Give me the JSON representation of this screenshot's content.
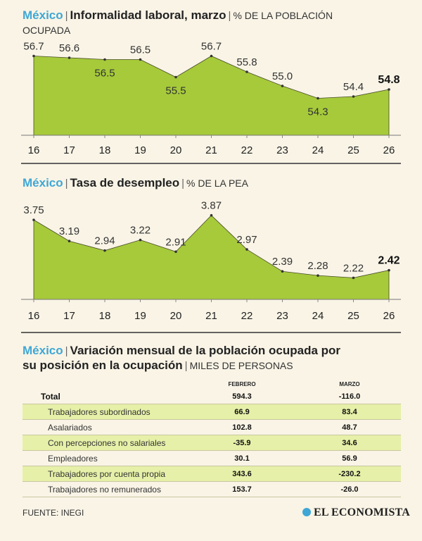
{
  "chart1": {
    "country": "México",
    "title": "Informalidad laboral, marzo",
    "unit_line1": "% DE LA POBLACIÓN",
    "unit_line2": "OCUPADA"
  },
  "chart2": {
    "country": "México",
    "title": "Tasa de desempleo",
    "unit": "% DE LA PEA"
  },
  "table": {
    "country": "México",
    "title_line1": "Variación mensual de la población ocupada por",
    "title_line2": "su posición en la ocupación",
    "unit": "MILES DE PERSONAS",
    "col_feb": "FEBRERO",
    "col_mar": "MARZO",
    "rows": [
      {
        "label": "Total",
        "feb": "594.3",
        "mar": "-116.0"
      },
      {
        "label": "Trabajadores subordinados",
        "feb": "66.9",
        "mar": "83.4"
      },
      {
        "label": "Asalariados",
        "feb": "102.8",
        "mar": "48.7"
      },
      {
        "label": "Con percepciones no salariales",
        "feb": "-35.9",
        "mar": "34.6"
      },
      {
        "label": "Empleadores",
        "feb": "30.1",
        "mar": "56.9"
      },
      {
        "label": "Trabajadores por cuenta propia",
        "feb": "343.6",
        "mar": "-230.2"
      },
      {
        "label": "Trabajadores no remunerados",
        "feb": "153.7",
        "mar": "-26.0"
      }
    ]
  },
  "footer": {
    "source": "FUENTE: INEGI",
    "logo_text": "EL ECONOMISTA"
  },
  "colors": {
    "area_fill": "#a6ca3a",
    "accent_blue": "#3fa7d6",
    "highlight_row": "#e6f0a8",
    "background": "#f9f4e6"
  },
  "chart_data": [
    {
      "type": "area",
      "title": "Informalidad laboral, marzo",
      "x": [
        "16",
        "17",
        "18",
        "19",
        "20",
        "21",
        "22",
        "23",
        "24",
        "25",
        "26"
      ],
      "values": [
        56.7,
        56.6,
        56.5,
        56.5,
        55.5,
        56.7,
        55.8,
        55.0,
        54.3,
        54.4,
        54.8
      ],
      "labels": [
        "56.7",
        "56.6",
        "56.5",
        "56.5",
        "55.5",
        "56.7",
        "55.8",
        "55.0",
        "54.3",
        "54.4",
        "54.8"
      ],
      "label_pos": [
        "above",
        "above",
        "below",
        "above",
        "below",
        "above",
        "above",
        "above",
        "below",
        "above",
        "above"
      ],
      "ylim": [
        52.2,
        57.4
      ]
    },
    {
      "type": "area",
      "title": "Tasa de desempleo",
      "x": [
        "16",
        "17",
        "18",
        "19",
        "20",
        "21",
        "22",
        "23",
        "24",
        "25",
        "26"
      ],
      "values": [
        3.75,
        3.19,
        2.94,
        3.22,
        2.91,
        3.87,
        2.97,
        2.39,
        2.28,
        2.22,
        2.42
      ],
      "labels": [
        "3.75",
        "3.19",
        "2.94",
        "3.22",
        "2.91",
        "3.87",
        "2.97",
        "2.39",
        "2.28",
        "2.22",
        "2.42"
      ],
      "label_pos": [
        "above",
        "above",
        "above",
        "above",
        "above",
        "above",
        "above",
        "above",
        "above",
        "above",
        "above"
      ],
      "ylim": [
        1.65,
        4.05
      ]
    }
  ]
}
